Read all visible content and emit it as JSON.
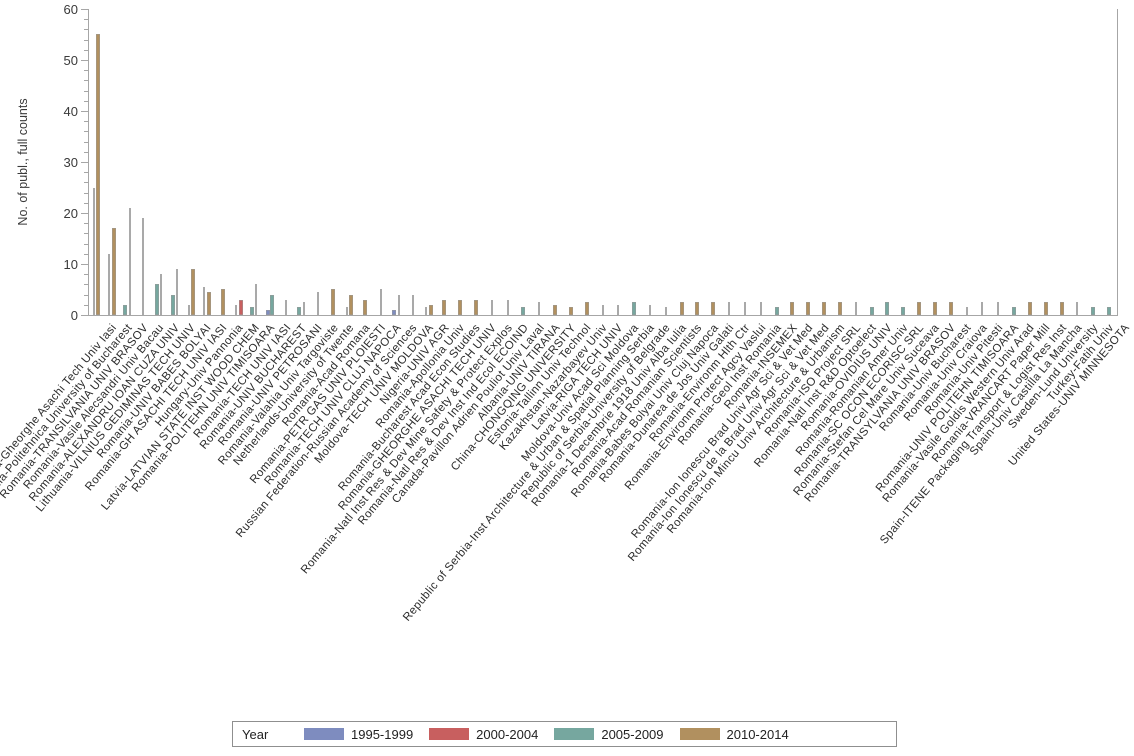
{
  "chart_data": {
    "type": "bar",
    "title": "",
    "xlabel": "",
    "ylabel": "No. of publ., full counts",
    "ylim": [
      0,
      60
    ],
    "ytick_interval": 10,
    "yminor_interval": 2,
    "yticks": [
      0,
      10,
      20,
      30,
      40,
      50,
      60
    ],
    "grid": false,
    "legend": {
      "title": "Year",
      "position": "bottom",
      "entries": [
        {
          "label": "1995-1999",
          "key": "blue",
          "color": "#7E8CBF"
        },
        {
          "label": "2000-2004",
          "key": "red",
          "color": "#C85F5F"
        },
        {
          "label": "2005-2009",
          "key": "teal",
          "color": "#76A79F"
        },
        {
          "label": "2010-2014",
          "key": "tan",
          "color": "#B1905F"
        }
      ]
    },
    "bar_colors": {
      "blue": "#7E8CBF",
      "red": "#C85F5F",
      "teal": "#76A79F",
      "tan": "#B1905F",
      "gray": "#A9A9A9"
    },
    "categories": [
      {
        "label": "Romania-Gheorghe Asachi Tech Univ Iasi",
        "bars": [
          [
            "gray",
            25
          ],
          [
            "tan",
            55
          ]
        ]
      },
      {
        "label": "Romania-Politehnica University of Bucharest",
        "bars": [
          [
            "gray",
            12
          ],
          [
            "tan",
            17
          ]
        ]
      },
      {
        "label": "Romania-TRANSILVANIA UNIV BRASOV",
        "bars": [
          [
            "teal",
            2
          ],
          [
            "gray",
            21
          ]
        ]
      },
      {
        "label": "Romania-Vasile Alecsandri Univ Bacau",
        "bars": [
          [
            "gray",
            19
          ]
        ]
      },
      {
        "label": "Romania-ALEXANDRU IOAN CUZA UNIV",
        "bars": [
          [
            "teal",
            6
          ],
          [
            "gray",
            8
          ]
        ]
      },
      {
        "label": "Lithuania-VILNIUS GEDIMINAS TECH UNIV",
        "bars": [
          [
            "teal",
            4
          ],
          [
            "gray",
            9
          ]
        ]
      },
      {
        "label": "Romania-UNIV BABES BOLYAI",
        "bars": [
          [
            "gray",
            2
          ],
          [
            "tan",
            9
          ]
        ]
      },
      {
        "label": "Romania-GH ASACHI TECH UNIV IASI",
        "bars": [
          [
            "gray",
            5.5
          ],
          [
            "tan",
            4.5
          ]
        ]
      },
      {
        "label": "Hungary-Univ Pannonia",
        "bars": [
          [
            "tan",
            5
          ]
        ]
      },
      {
        "label": "Latvia-LATVIAN STATE INST WOOD CHEM",
        "bars": [
          [
            "gray",
            2
          ],
          [
            "red",
            3
          ]
        ]
      },
      {
        "label": "Romania-POLITEHN UNIV TIMISOARA",
        "bars": [
          [
            "teal",
            1.5
          ],
          [
            "gray",
            6
          ]
        ]
      },
      {
        "label": "Romania-TECH UNIV IASI",
        "bars": [
          [
            "blue",
            1
          ],
          [
            "teal",
            4
          ]
        ]
      },
      {
        "label": "Romania-UNIV BUCHAREST",
        "bars": [
          [
            "gray",
            3
          ]
        ]
      },
      {
        "label": "Romania-UNIV PETROSANI",
        "bars": [
          [
            "teal",
            1.5
          ],
          [
            "gray",
            2.5
          ]
        ]
      },
      {
        "label": "Romania-Valahia Univ Targoviste",
        "bars": [
          [
            "gray",
            4.5
          ]
        ]
      },
      {
        "label": "Netherlands-University of Twente",
        "bars": [
          [
            "tan",
            5
          ]
        ]
      },
      {
        "label": "Romania-Acad Romana",
        "bars": [
          [
            "gray",
            1.5
          ],
          [
            "tan",
            4
          ]
        ]
      },
      {
        "label": "Romania-PETR GAS UNIV PLOIESTI",
        "bars": [
          [
            "tan",
            3
          ]
        ]
      },
      {
        "label": "Romania-TECH UNIV CLUJ NAPOCA",
        "bars": [
          [
            "gray",
            5
          ]
        ]
      },
      {
        "label": "Russian Federation-Russian Academy of Sciences",
        "bars": [
          [
            "blue",
            1
          ],
          [
            "gray",
            4
          ]
        ]
      },
      {
        "label": "Moldova-TECH UNIV MOLDOVA",
        "bars": [
          [
            "gray",
            4
          ]
        ]
      },
      {
        "label": "Nigeria-UNIV AGR",
        "bars": [
          [
            "gray",
            1.5
          ],
          [
            "tan",
            2
          ]
        ]
      },
      {
        "label": "Romania-Apollonia Univ",
        "bars": [
          [
            "tan",
            3
          ]
        ]
      },
      {
        "label": "Romania-Bucharest Acad Econ Studies",
        "bars": [
          [
            "tan",
            3
          ]
        ]
      },
      {
        "label": "Romania-GHEORGHE ASACHI TECH UNIV",
        "bars": [
          [
            "tan",
            3
          ]
        ]
      },
      {
        "label": "Romania-Natl Inst Res & Dev Mine Safety & Protect Explos",
        "bars": [
          [
            "gray",
            3
          ]
        ]
      },
      {
        "label": "Romania-Natl Res & Dev Inst Ind Ecol ECOIND",
        "bars": [
          [
            "gray",
            3
          ]
        ]
      },
      {
        "label": "Canada-Pavillon Adrien Pouliot Univ Laval",
        "bars": [
          [
            "teal",
            1.5
          ]
        ]
      },
      {
        "label": "Albania-UNIV TIRANA",
        "bars": [
          [
            "gray",
            2.5
          ]
        ]
      },
      {
        "label": "China-CHONGQING UNIVERSITY",
        "bars": [
          [
            "tan",
            2
          ]
        ]
      },
      {
        "label": "Estonia-Tallinn Univ Technol",
        "bars": [
          [
            "tan",
            1.5
          ]
        ]
      },
      {
        "label": "Kazakhstan-Nazarbayev Univ",
        "bars": [
          [
            "tan",
            2.5
          ]
        ]
      },
      {
        "label": "Latvia-RIGA TECH UNIV",
        "bars": [
          [
            "gray",
            2
          ]
        ]
      },
      {
        "label": "Moldova-Univ Acad Sci Moldova",
        "bars": [
          [
            "gray",
            2
          ]
        ]
      },
      {
        "label": "Republic of Serbia-Inst Architecture & Urban & Spatial Planning Serbia",
        "bars": [
          [
            "teal",
            2.5
          ]
        ]
      },
      {
        "label": "Republic of Serbia-University of Belgrade",
        "bars": [
          [
            "gray",
            2
          ]
        ]
      },
      {
        "label": "Romania-1 Decembrie 1918 Univ Alba Iulia",
        "bars": [
          [
            "gray",
            1.5
          ]
        ]
      },
      {
        "label": "Romania-Acad Romanian Scientists",
        "bars": [
          [
            "tan",
            2.5
          ]
        ]
      },
      {
        "label": "Romania-Babes Bolyai Univ Cluj Napoca",
        "bars": [
          [
            "tan",
            2.5
          ]
        ]
      },
      {
        "label": "Romania-Dunarea de Jos Univ Galati",
        "bars": [
          [
            "tan",
            2.5
          ]
        ]
      },
      {
        "label": "Romania-Environm Hlth Ctr",
        "bars": [
          [
            "gray",
            2.5
          ]
        ]
      },
      {
        "label": "Romania-Environm Protect Agcy Vaslui",
        "bars": [
          [
            "gray",
            2.5
          ]
        ]
      },
      {
        "label": "Romania-Geol Inst Romania",
        "bars": [
          [
            "gray",
            2.5
          ]
        ]
      },
      {
        "label": "Romania-INSEMEX",
        "bars": [
          [
            "teal",
            1.5
          ]
        ]
      },
      {
        "label": "Romania-Ion Ionescu Brad Univ Agr Sci & Vet Med",
        "bars": [
          [
            "tan",
            2.5
          ]
        ]
      },
      {
        "label": "Romania-Ion Ionescu de la Brad Univ Agr Sci & Vet Med",
        "bars": [
          [
            "tan",
            2.5
          ]
        ]
      },
      {
        "label": "Romania-Ion Mincu Univ Architecture & Urbanism",
        "bars": [
          [
            "tan",
            2.5
          ]
        ]
      },
      {
        "label": "Romania-ISO Project SRL",
        "bars": [
          [
            "tan",
            2.5
          ]
        ]
      },
      {
        "label": "Romania-Natl Inst R&D Optoelect",
        "bars": [
          [
            "gray",
            2.5
          ]
        ]
      },
      {
        "label": "Romania-OVIDIUS UNIV",
        "bars": [
          [
            "teal",
            1.5
          ]
        ]
      },
      {
        "label": "Romania-Romanian Amer Univ",
        "bars": [
          [
            "teal",
            2.5
          ]
        ]
      },
      {
        "label": "Romania-SC OCON ECORISC SRL",
        "bars": [
          [
            "teal",
            1.5
          ]
        ]
      },
      {
        "label": "Romania-Stefan Cel Mare Univ Suceava",
        "bars": [
          [
            "tan",
            2.5
          ]
        ]
      },
      {
        "label": "Romania-TRANSYLVANIA UNIV BRASOV",
        "bars": [
          [
            "tan",
            2.5
          ]
        ]
      },
      {
        "label": "Romania-Univ Bucharest",
        "bars": [
          [
            "tan",
            2.5
          ]
        ]
      },
      {
        "label": "Romania-Univ Craiova",
        "bars": [
          [
            "gray",
            1.5
          ]
        ]
      },
      {
        "label": "Romania-Univ Pitesti",
        "bars": [
          [
            "gray",
            2.5
          ]
        ]
      },
      {
        "label": "Romania-UNIV POLITEHN TIMISOARA",
        "bars": [
          [
            "gray",
            2.5
          ]
        ]
      },
      {
        "label": "Romania-Vasile Goldis Western Univ Arad",
        "bars": [
          [
            "teal",
            1.5
          ]
        ]
      },
      {
        "label": "Romania-VRANCART Paper Mill",
        "bars": [
          [
            "tan",
            2.5
          ]
        ]
      },
      {
        "label": "Spain-ITENE Packaging Transport & Logist Res Inst",
        "bars": [
          [
            "tan",
            2.5
          ]
        ]
      },
      {
        "label": "Spain-Univ Castilla La Mancha",
        "bars": [
          [
            "tan",
            2.5
          ]
        ]
      },
      {
        "label": "Sweden-Lund University",
        "bars": [
          [
            "gray",
            2.5
          ]
        ]
      },
      {
        "label": "Turkey-Fatih Univ",
        "bars": [
          [
            "teal",
            1.5
          ]
        ]
      },
      {
        "label": "United States-UNIV MINNESOTA",
        "bars": [
          [
            "teal",
            1.5
          ]
        ]
      }
    ]
  }
}
